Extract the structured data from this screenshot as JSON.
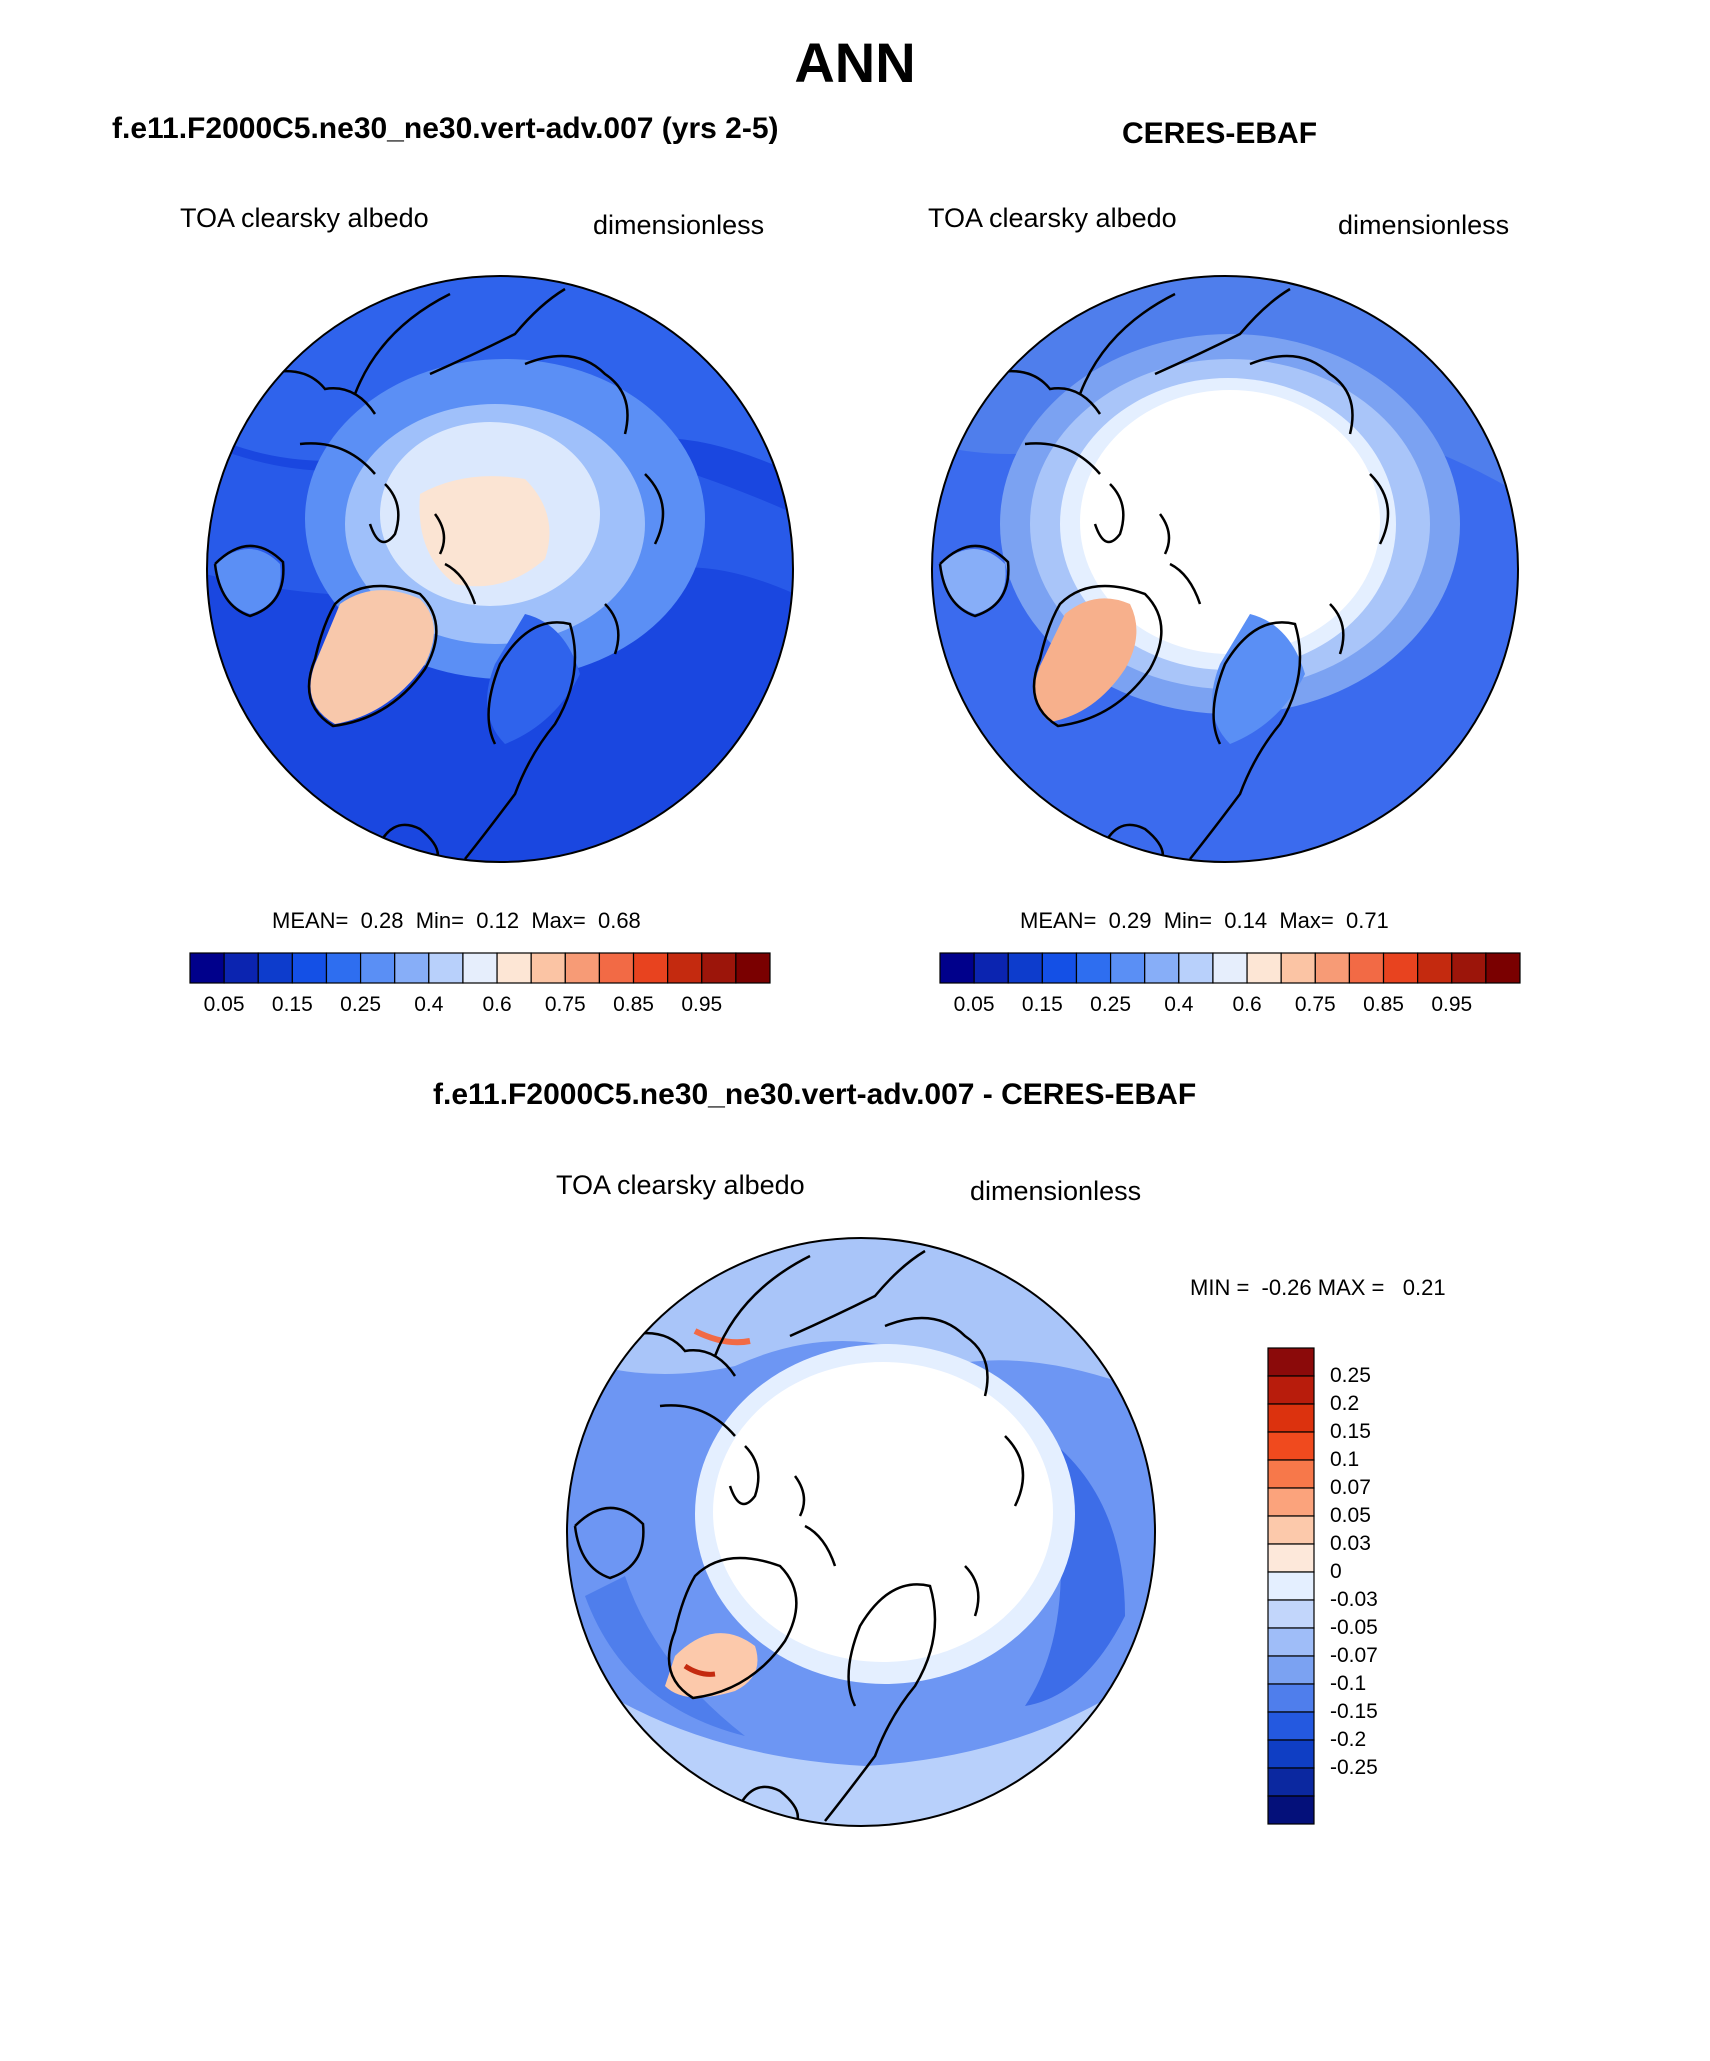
{
  "page": {
    "title": "ANN"
  },
  "panels": [
    {
      "case_title": "f.e11.F2000C5.ne30_ne30.vert-adv.007 (yrs 2-5)",
      "variable": "TOA clearsky albedo",
      "units": "dimensionless",
      "stats": {
        "mean_label": "MEAN=",
        "mean": "0.28",
        "min_label": "Min=",
        "min": "0.12",
        "max_label": "Max=",
        "max": "0.68"
      }
    },
    {
      "case_title": "CERES-EBAF",
      "variable": "TOA clearsky albedo",
      "units": "dimensionless",
      "stats": {
        "mean_label": "MEAN=",
        "mean": "0.29",
        "min_label": "Min=",
        "min": "0.14",
        "max_label": "Max=",
        "max": "0.71"
      }
    }
  ],
  "colorbar": {
    "colors": [
      "#00008b",
      "#0b24b0",
      "#0d3ccc",
      "#1450e6",
      "#2e6ef0",
      "#5a8ff5",
      "#87aef8",
      "#b8d0fb",
      "#e6eefc",
      "#fde6d5",
      "#fbc4a4",
      "#f79b76",
      "#f26a45",
      "#e8431f",
      "#c42a0f",
      "#9c150a",
      "#7a0000"
    ],
    "ticks": [
      "0.05",
      "0.15",
      "0.25",
      "0.4",
      "0.6",
      "0.75",
      "0.85",
      "0.95"
    ]
  },
  "diff_panel": {
    "case_title": "f.e11.F2000C5.ne30_ne30.vert-adv.007 - CERES-EBAF",
    "variable": "TOA clearsky albedo",
    "units": "dimensionless",
    "minmax_text": "MIN =  -0.26 MAX =   0.21",
    "colorbar": {
      "colors_top_to_bottom": [
        "#8b0a0a",
        "#b81c0c",
        "#dc320e",
        "#f04a1e",
        "#f7784a",
        "#fba37c",
        "#fcc9ab",
        "#fde8da",
        "#e4efff",
        "#c2d6fb",
        "#9fbdf8",
        "#7ba2f2",
        "#4f7eec",
        "#2459e0",
        "#0f3ec4",
        "#0b28a0",
        "#04107a"
      ],
      "ticks": [
        "0.25",
        "0.2",
        "0.15",
        "0.1",
        "0.07",
        "0.05",
        "0.03",
        "0",
        "-0.03",
        "-0.05",
        "-0.07",
        "-0.1",
        "-0.15",
        "-0.2",
        "-0.25"
      ]
    }
  },
  "colors": {
    "ocean_model": "#1a47e0",
    "ocean_obs": "#3b6bee",
    "diff_ocean": "#6d96f3",
    "coast": "#000000"
  }
}
